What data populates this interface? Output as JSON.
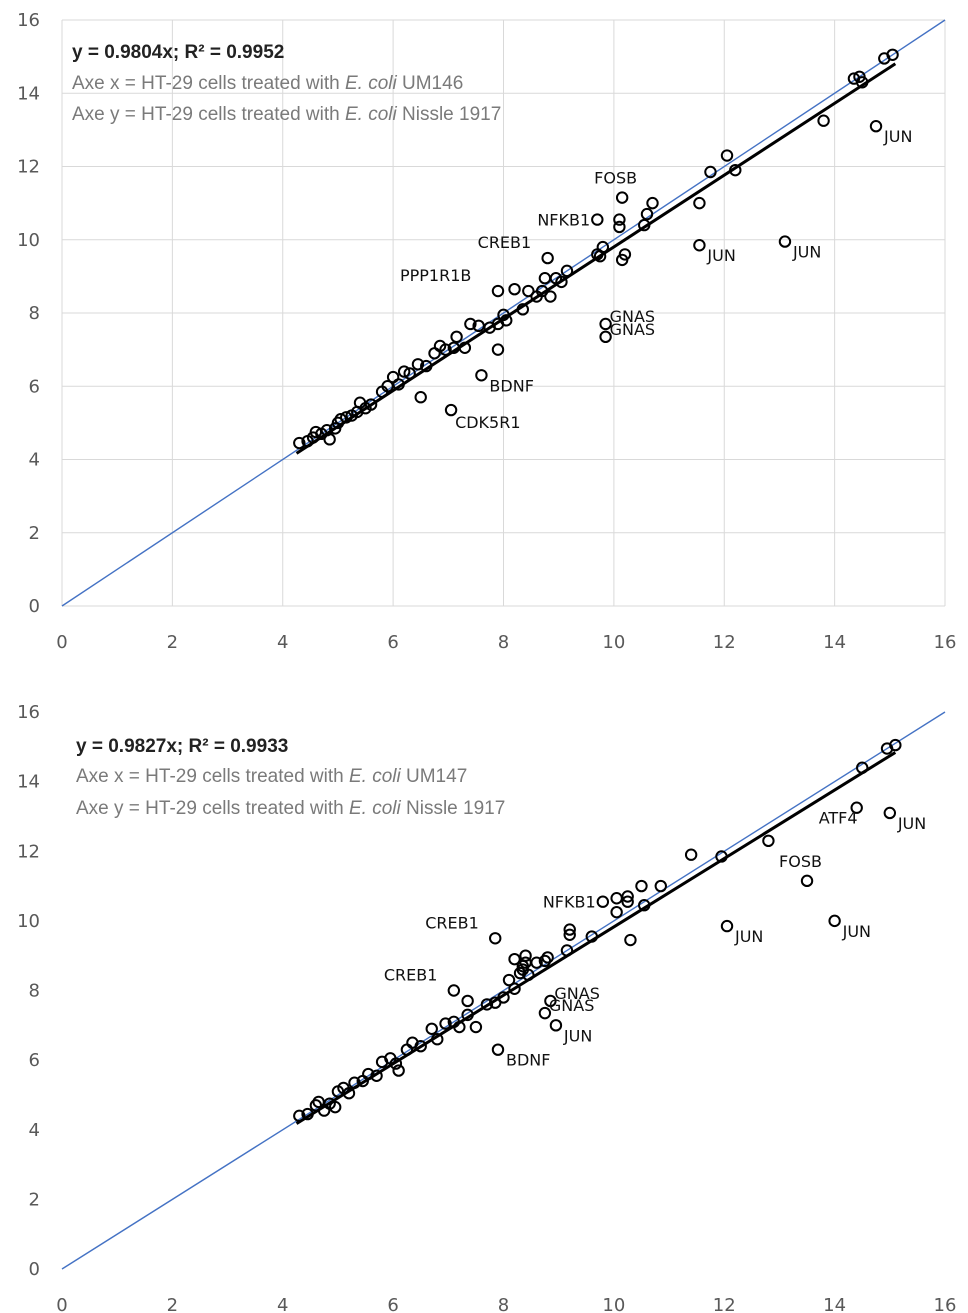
{
  "charts": [
    {
      "equation": "y = 0.9804x; R² = 0.9952",
      "x_axis_prefix": "Axe x = HT-29 cells treated with ",
      "x_axis_species": "E. coli",
      "x_axis_strain": " UM146",
      "y_axis_prefix": "Axe y = HT-29 cells treated with ",
      "y_axis_species": "E. coli",
      "y_axis_strain": " Nissle 1917"
    },
    {
      "equation": "y = 0.9827x; R² = 0.9933",
      "x_axis_prefix": "Axe x = HT-29 cells treated with ",
      "x_axis_species": "E. coli",
      "x_axis_strain": " UM147",
      "y_axis_prefix": "Axe y = HT-29 cells treated with ",
      "y_axis_species": "E. coli",
      "y_axis_strain": " Nissle 1917"
    }
  ],
  "chart_data": [
    {
      "type": "scatter",
      "xlim": [
        0,
        16
      ],
      "ylim": [
        0,
        16
      ],
      "xticks": [
        0,
        2,
        4,
        6,
        8,
        10,
        12,
        14,
        16
      ],
      "yticks": [
        0,
        2,
        4,
        6,
        8,
        10,
        12,
        14,
        16
      ],
      "grid": true,
      "identity_line": {
        "color": "#4472c4"
      },
      "trendline": {
        "slope": 0.9804,
        "x_range": [
          4.25,
          15.1
        ],
        "color": "#000000"
      },
      "points": [
        [
          4.3,
          4.45
        ],
        [
          4.45,
          4.5
        ],
        [
          4.55,
          4.6
        ],
        [
          4.6,
          4.75
        ],
        [
          4.7,
          4.7
        ],
        [
          4.8,
          4.8
        ],
        [
          4.85,
          4.55
        ],
        [
          4.95,
          4.85
        ],
        [
          5.0,
          5.0
        ],
        [
          5.05,
          5.1
        ],
        [
          5.15,
          5.15
        ],
        [
          5.25,
          5.2
        ],
        [
          5.35,
          5.3
        ],
        [
          5.4,
          5.55
        ],
        [
          5.5,
          5.4
        ],
        [
          5.6,
          5.5
        ],
        [
          5.8,
          5.85
        ],
        [
          5.9,
          6.0
        ],
        [
          6.0,
          6.25
        ],
        [
          6.1,
          6.05
        ],
        [
          6.2,
          6.4
        ],
        [
          6.3,
          6.35
        ],
        [
          6.45,
          6.6
        ],
        [
          6.5,
          5.7
        ],
        [
          6.6,
          6.55
        ],
        [
          6.75,
          6.9
        ],
        [
          6.85,
          7.1
        ],
        [
          6.95,
          7.0
        ],
        [
          7.1,
          7.05
        ],
        [
          7.15,
          7.35
        ],
        [
          7.3,
          7.05
        ],
        [
          7.4,
          7.7
        ],
        [
          7.55,
          7.65
        ],
        [
          7.75,
          7.6
        ],
        [
          7.9,
          7.7
        ],
        [
          8.0,
          7.95
        ],
        [
          8.05,
          7.8
        ],
        [
          8.2,
          8.65
        ],
        [
          8.35,
          8.1
        ],
        [
          8.45,
          8.6
        ],
        [
          8.6,
          8.45
        ],
        [
          8.7,
          8.6
        ],
        [
          8.75,
          8.95
        ],
        [
          8.85,
          8.45
        ],
        [
          8.95,
          8.95
        ],
        [
          9.05,
          8.85
        ],
        [
          9.15,
          9.15
        ],
        [
          9.7,
          9.6
        ],
        [
          9.75,
          9.55
        ],
        [
          9.8,
          9.8
        ],
        [
          10.1,
          10.35
        ],
        [
          10.55,
          10.4
        ],
        [
          10.6,
          10.7
        ],
        [
          10.7,
          11.0
        ],
        [
          11.75,
          11.85
        ],
        [
          12.05,
          12.3
        ],
        [
          12.2,
          11.9
        ],
        [
          13.8,
          13.25
        ],
        [
          14.35,
          14.4
        ],
        [
          14.45,
          14.45
        ],
        [
          14.5,
          14.3
        ],
        [
          14.9,
          14.95
        ],
        [
          15.05,
          15.05
        ],
        [
          7.9,
          8.6
        ],
        [
          7.6,
          6.3
        ],
        [
          7.9,
          7.0
        ],
        [
          7.05,
          5.35
        ],
        [
          9.85,
          7.7
        ],
        [
          9.85,
          7.35
        ],
        [
          8.8,
          9.5
        ],
        [
          9.7,
          10.55
        ],
        [
          10.15,
          11.15
        ],
        [
          10.1,
          10.55
        ],
        [
          10.15,
          9.45
        ],
        [
          10.2,
          9.6
        ],
        [
          11.55,
          11.0
        ],
        [
          11.55,
          9.85
        ],
        [
          13.1,
          9.95
        ],
        [
          14.75,
          13.1
        ]
      ],
      "labels": [
        {
          "text": "JUN",
          "x": 14.75,
          "y": 13.1
        },
        {
          "text": "FOSB",
          "x": 10.15,
          "y": 11.15
        },
        {
          "text": "NFKB1",
          "x": 9.7,
          "y": 10.55
        },
        {
          "text": "CREB1",
          "x": 8.8,
          "y": 9.5
        },
        {
          "text": "JUN",
          "x": 11.55,
          "y": 9.85
        },
        {
          "text": "JUN",
          "x": 13.1,
          "y": 9.95
        },
        {
          "text": "PPP1R1B",
          "x": 7.9,
          "y": 8.6
        },
        {
          "text": "GNAS",
          "x": 9.85,
          "y": 7.7
        },
        {
          "text": "GNAS",
          "x": 9.85,
          "y": 7.35
        },
        {
          "text": "BDNF",
          "x": 7.6,
          "y": 6.3
        },
        {
          "text": "CDK5R1",
          "x": 7.05,
          "y": 5.35
        }
      ]
    },
    {
      "type": "scatter",
      "xlim": [
        0,
        16
      ],
      "ylim": [
        0,
        16
      ],
      "xticks": [
        0,
        2,
        4,
        6,
        8,
        10,
        12,
        14,
        16
      ],
      "yticks": [
        0,
        2,
        4,
        6,
        8,
        10,
        12,
        14,
        16
      ],
      "grid": false,
      "identity_line": {
        "color": "#4472c4"
      },
      "trendline": {
        "slope": 0.9827,
        "x_range": [
          4.25,
          15.1
        ],
        "color": "#000000"
      },
      "points": [
        [
          4.3,
          4.4
        ],
        [
          4.45,
          4.45
        ],
        [
          4.6,
          4.7
        ],
        [
          4.65,
          4.8
        ],
        [
          4.75,
          4.55
        ],
        [
          4.85,
          4.75
        ],
        [
          4.95,
          4.65
        ],
        [
          5.0,
          5.1
        ],
        [
          5.1,
          5.2
        ],
        [
          5.2,
          5.05
        ],
        [
          5.3,
          5.35
        ],
        [
          5.45,
          5.4
        ],
        [
          5.55,
          5.6
        ],
        [
          5.7,
          5.55
        ],
        [
          5.8,
          5.95
        ],
        [
          5.95,
          6.05
        ],
        [
          6.05,
          5.9
        ],
        [
          6.1,
          5.7
        ],
        [
          6.25,
          6.3
        ],
        [
          6.35,
          6.5
        ],
        [
          6.5,
          6.4
        ],
        [
          6.7,
          6.9
        ],
        [
          6.8,
          6.6
        ],
        [
          6.95,
          7.05
        ],
        [
          7.1,
          7.1
        ],
        [
          7.2,
          6.95
        ],
        [
          7.35,
          7.3
        ],
        [
          7.5,
          6.95
        ],
        [
          7.7,
          7.6
        ],
        [
          7.85,
          7.65
        ],
        [
          8.0,
          7.8
        ],
        [
          8.1,
          8.3
        ],
        [
          8.2,
          8.05
        ],
        [
          8.3,
          8.5
        ],
        [
          8.35,
          8.7
        ],
        [
          8.45,
          8.45
        ],
        [
          8.6,
          8.8
        ],
        [
          8.75,
          8.85
        ],
        [
          8.8,
          8.95
        ],
        [
          9.15,
          9.15
        ],
        [
          9.6,
          9.55
        ],
        [
          10.05,
          10.25
        ],
        [
          10.3,
          9.45
        ],
        [
          10.55,
          10.45
        ],
        [
          10.85,
          11.0
        ],
        [
          11.4,
          11.9
        ],
        [
          11.95,
          11.85
        ],
        [
          12.8,
          12.3
        ],
        [
          14.5,
          14.4
        ],
        [
          14.95,
          14.95
        ],
        [
          15.1,
          15.05
        ],
        [
          7.1,
          8.0
        ],
        [
          7.35,
          7.7
        ],
        [
          7.9,
          6.3
        ],
        [
          8.85,
          7.7
        ],
        [
          8.75,
          7.35
        ],
        [
          8.95,
          7.0
        ],
        [
          7.85,
          9.5
        ],
        [
          9.2,
          9.75
        ],
        [
          9.2,
          9.6
        ],
        [
          8.4,
          9.0
        ],
        [
          8.4,
          8.8
        ],
        [
          9.8,
          10.55
        ],
        [
          10.05,
          10.65
        ],
        [
          10.25,
          10.7
        ],
        [
          10.25,
          10.55
        ],
        [
          10.5,
          11.0
        ],
        [
          12.05,
          9.85
        ],
        [
          13.5,
          11.15
        ],
        [
          14.0,
          10.0
        ],
        [
          14.4,
          13.25
        ],
        [
          15.0,
          13.1
        ],
        [
          8.2,
          8.9
        ],
        [
          8.35,
          8.6
        ]
      ],
      "labels": [
        {
          "text": "ATF4",
          "x": 14.4,
          "y": 13.25
        },
        {
          "text": "JUN",
          "x": 15.0,
          "y": 13.1
        },
        {
          "text": "FOSB",
          "x": 13.5,
          "y": 11.15
        },
        {
          "text": "NFKB1",
          "x": 9.8,
          "y": 10.55
        },
        {
          "text": "CREB1",
          "x": 7.85,
          "y": 9.5
        },
        {
          "text": "JUN",
          "x": 12.05,
          "y": 9.85
        },
        {
          "text": "JUN",
          "x": 14.0,
          "y": 10.0
        },
        {
          "text": "CREB1",
          "x": 7.1,
          "y": 8.0
        },
        {
          "text": "GNAS",
          "x": 8.85,
          "y": 7.7
        },
        {
          "text": "GNAS",
          "x": 8.75,
          "y": 7.35
        },
        {
          "text": "JUN",
          "x": 8.95,
          "y": 7.0
        },
        {
          "text": "BDNF",
          "x": 7.9,
          "y": 6.3
        }
      ]
    }
  ]
}
